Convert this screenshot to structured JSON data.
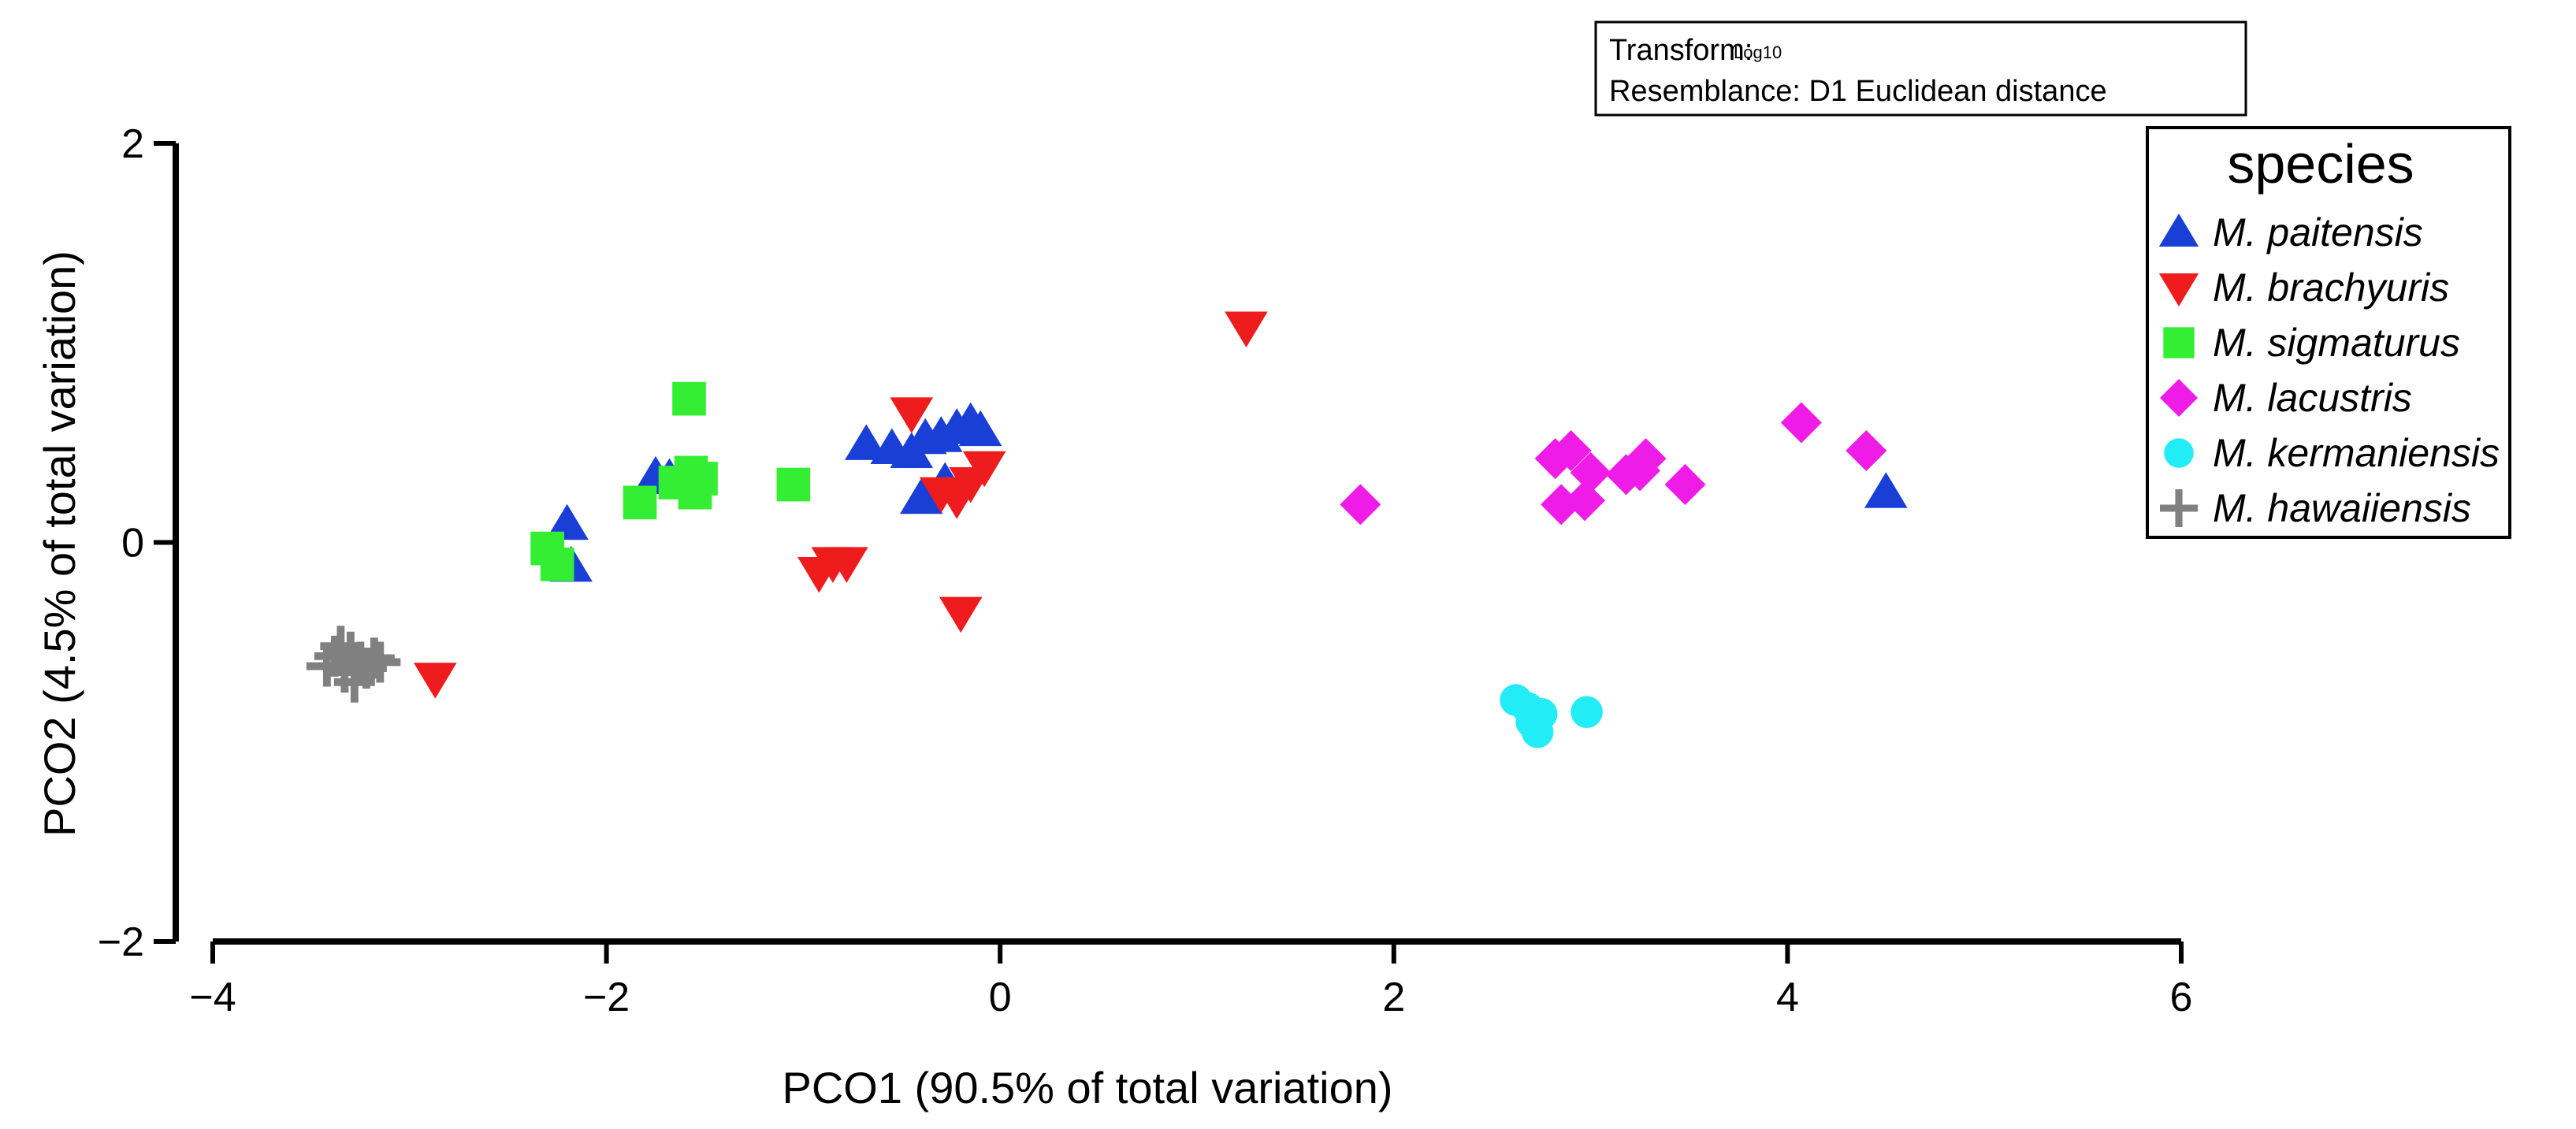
{
  "chart_data": {
    "type": "scatter",
    "title": "",
    "xlabel": "PCO1 (90.5% of total variation)",
    "ylabel": "PCO2 (4.5% of total variation)",
    "xlim": [
      -4,
      6
    ],
    "ylim": [
      -2,
      2
    ],
    "x_ticks": [
      -4,
      -2,
      0,
      2,
      4,
      6
    ],
    "y_ticks": [
      -2,
      0,
      2
    ],
    "x_tick_labels": [
      "−4",
      "−2",
      "0",
      "2",
      "4",
      "6"
    ],
    "y_tick_labels": [
      "−2",
      "0",
      "2"
    ],
    "info_box": {
      "transform_label": "Transform: ",
      "transform_value": "Log10",
      "resemblance": "Resemblance: D1 Euclidean distance"
    },
    "legend": {
      "title": "species",
      "position": "top-right"
    },
    "series": [
      {
        "name": "M. paitensis",
        "marker": "triangle-up",
        "color": "#1a3fd6",
        "points": [
          [
            -2.2,
            0.09
          ],
          [
            -2.18,
            -0.12
          ],
          [
            -1.75,
            0.33
          ],
          [
            -1.68,
            0.32
          ],
          [
            -0.68,
            0.49
          ],
          [
            -0.55,
            0.47
          ],
          [
            -0.45,
            0.45
          ],
          [
            -0.38,
            0.52
          ],
          [
            -0.3,
            0.53
          ],
          [
            -0.22,
            0.57
          ],
          [
            -0.15,
            0.6
          ],
          [
            -0.1,
            0.56
          ],
          [
            -0.4,
            0.22
          ],
          [
            -0.28,
            0.3
          ],
          [
            4.5,
            0.25
          ]
        ]
      },
      {
        "name": "M. brachyuris",
        "marker": "triangle-down",
        "color": "#ee1c1c",
        "points": [
          [
            -2.87,
            -0.68
          ],
          [
            -0.92,
            -0.15
          ],
          [
            -0.85,
            -0.1
          ],
          [
            -0.78,
            -0.1
          ],
          [
            -0.45,
            0.65
          ],
          [
            -0.3,
            0.25
          ],
          [
            -0.22,
            0.22
          ],
          [
            -0.15,
            0.3
          ],
          [
            -0.08,
            0.38
          ],
          [
            -0.2,
            -0.35
          ],
          [
            1.25,
            1.08
          ]
        ]
      },
      {
        "name": "M. sigmaturus",
        "marker": "square",
        "color": "#33ee33",
        "points": [
          [
            -2.3,
            -0.03
          ],
          [
            -2.25,
            -0.11
          ],
          [
            -1.83,
            0.2
          ],
          [
            -1.65,
            0.3
          ],
          [
            -1.58,
            0.72
          ],
          [
            -1.57,
            0.35
          ],
          [
            -1.55,
            0.25
          ],
          [
            -1.52,
            0.32
          ],
          [
            -1.05,
            0.29
          ]
        ]
      },
      {
        "name": "M. lacustris",
        "marker": "diamond",
        "color": "#ee1ce6",
        "points": [
          [
            1.83,
            0.19
          ],
          [
            2.82,
            0.42
          ],
          [
            2.9,
            0.46
          ],
          [
            3.0,
            0.35
          ],
          [
            2.85,
            0.19
          ],
          [
            2.97,
            0.21
          ],
          [
            3.18,
            0.34
          ],
          [
            3.28,
            0.42
          ],
          [
            3.25,
            0.36
          ],
          [
            3.48,
            0.29
          ],
          [
            4.07,
            0.6
          ],
          [
            4.4,
            0.46
          ]
        ]
      },
      {
        "name": "M. kermaniensis",
        "marker": "circle",
        "color": "#22ecf5",
        "points": [
          [
            2.62,
            -0.79
          ],
          [
            2.68,
            -0.83
          ],
          [
            2.75,
            -0.86
          ],
          [
            2.7,
            -0.9
          ],
          [
            2.73,
            -0.95
          ],
          [
            2.98,
            -0.85
          ]
        ]
      },
      {
        "name": "M. hawaiiensis",
        "marker": "plus",
        "color": "#808080",
        "points": [
          [
            -3.42,
            -0.62
          ],
          [
            -3.38,
            -0.57
          ],
          [
            -3.33,
            -0.65
          ],
          [
            -3.3,
            -0.55
          ],
          [
            -3.28,
            -0.7
          ],
          [
            -3.25,
            -0.6
          ],
          [
            -3.22,
            -0.63
          ],
          [
            -3.35,
            -0.52
          ],
          [
            -3.18,
            -0.58
          ],
          [
            -3.15,
            -0.6
          ]
        ]
      }
    ]
  }
}
